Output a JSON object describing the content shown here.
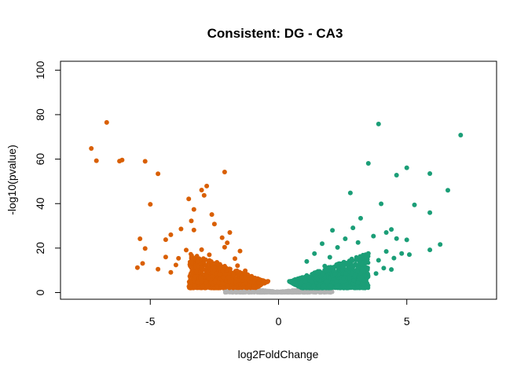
{
  "chart_data": {
    "type": "scatter",
    "title": "Consistent: DG - CA3",
    "xlabel": "log2FoldChange",
    "ylabel": "-log10(pvalue)",
    "xlim": [
      -8.5,
      8.5
    ],
    "ylim": [
      -3,
      104
    ],
    "x_ticks": [
      "-5",
      "0",
      "5"
    ],
    "x_tick_values": [
      -5,
      0,
      5
    ],
    "y_ticks": [
      "0",
      "20",
      "40",
      "60",
      "80",
      "100"
    ],
    "y_tick_values": [
      0,
      20,
      40,
      60,
      80,
      100
    ],
    "grid": false,
    "legend": "none",
    "colors": {
      "down": "#D95F02",
      "up": "#1B9E77",
      "ns": "#B3B3B3"
    },
    "series": [
      {
        "values": [
          [
            -6.7,
            76.5
          ],
          [
            -7.3,
            64.8
          ],
          [
            -7.1,
            59.3
          ],
          [
            -6.2,
            59.1
          ],
          [
            -6.1,
            59.6
          ],
          [
            -5.2,
            59.0
          ],
          [
            -4.7,
            53.4
          ],
          [
            -2.1,
            54.2
          ],
          [
            -5.0,
            39.7
          ],
          [
            -3.5,
            42.1
          ],
          [
            -2.8,
            47.9
          ],
          [
            -3.0,
            46.1
          ],
          [
            -2.9,
            43.7
          ],
          [
            -3.3,
            37.4
          ],
          [
            -2.6,
            35.1
          ],
          [
            -3.4,
            32.2
          ],
          [
            -2.5,
            30.8
          ],
          [
            -3.8,
            28.6
          ],
          [
            -3.3,
            28.1
          ],
          [
            -4.2,
            26.0
          ],
          [
            -1.9,
            27.0
          ],
          [
            -2.2,
            24.7
          ],
          [
            -5.4,
            24.2
          ],
          [
            -4.4,
            23.8
          ],
          [
            -2.0,
            22.4
          ],
          [
            -5.2,
            19.8
          ],
          [
            -3.6,
            19.1
          ],
          [
            -4.4,
            16.0
          ],
          [
            -2.7,
            17.0
          ],
          [
            -3.9,
            15.4
          ],
          [
            -2.1,
            20.4
          ],
          [
            -3.0,
            19.3
          ],
          [
            -5.3,
            13.1
          ],
          [
            -4.0,
            12.4
          ],
          [
            -4.7,
            10.5
          ],
          [
            -3.4,
            11.2
          ],
          [
            -2.4,
            13.6
          ],
          [
            -1.5,
            18.7
          ],
          [
            -1.7,
            15.3
          ],
          [
            -3.2,
            9.5
          ],
          [
            -2.3,
            8.2
          ],
          [
            -1.6,
            12.1
          ],
          [
            -2.8,
            7.6
          ],
          [
            -1.3,
            9.8
          ],
          [
            -5.5,
            11.2
          ],
          [
            -4.2,
            9.1
          ]
        ]
      },
      {
        "values": [
          [
            3.9,
            75.8
          ],
          [
            7.1,
            70.8
          ],
          [
            3.5,
            58.1
          ],
          [
            5.0,
            56.1
          ],
          [
            4.6,
            52.8
          ],
          [
            5.9,
            53.5
          ],
          [
            6.6,
            46.0
          ],
          [
            2.8,
            44.8
          ],
          [
            4.0,
            39.9
          ],
          [
            5.3,
            39.4
          ],
          [
            5.9,
            35.9
          ],
          [
            3.2,
            33.4
          ],
          [
            2.9,
            29.1
          ],
          [
            4.2,
            27.0
          ],
          [
            4.4,
            28.4
          ],
          [
            2.1,
            28.0
          ],
          [
            3.7,
            25.4
          ],
          [
            4.6,
            24.3
          ],
          [
            5.0,
            23.7
          ],
          [
            6.3,
            21.6
          ],
          [
            2.6,
            24.2
          ],
          [
            3.1,
            22.5
          ],
          [
            5.9,
            19.2
          ],
          [
            4.8,
            17.6
          ],
          [
            4.5,
            15.5
          ],
          [
            4.2,
            18.5
          ],
          [
            5.1,
            17.1
          ],
          [
            2.3,
            20.3
          ],
          [
            3.9,
            14.5
          ],
          [
            1.7,
            22.0
          ],
          [
            1.4,
            17.5
          ],
          [
            3.5,
            17.6
          ],
          [
            2.0,
            15.9
          ],
          [
            3.0,
            12.7
          ],
          [
            4.1,
            11.0
          ],
          [
            3.3,
            9.6
          ],
          [
            2.5,
            11.7
          ],
          [
            1.1,
            14.0
          ],
          [
            1.8,
            11.9
          ],
          [
            3.8,
            8.6
          ],
          [
            2.2,
            8.3
          ],
          [
            4.4,
            10.4
          ]
        ]
      }
    ]
  }
}
